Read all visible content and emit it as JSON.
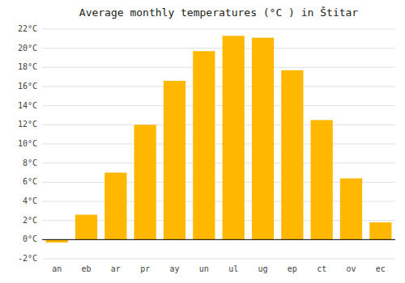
{
  "chart_data": {
    "type": "bar",
    "title": "Average monthly temperatures (°C ) in Štitar",
    "categories": [
      "an",
      "eb",
      "ar",
      "pr",
      "ay",
      "un",
      "ul",
      "ug",
      "ep",
      "ct",
      "ov",
      "ec"
    ],
    "values": [
      -0.3,
      2.6,
      7.0,
      12.0,
      16.6,
      19.7,
      21.3,
      21.1,
      17.7,
      12.5,
      6.4,
      1.8
    ],
    "color": "#FFB700",
    "ylim": [
      -2,
      22
    ],
    "yticks": [
      {
        "value": -2,
        "label": "-2°C"
      },
      {
        "value": 0,
        "label": "0°C"
      },
      {
        "value": 2,
        "label": "2°C"
      },
      {
        "value": 4,
        "label": "4°C"
      },
      {
        "value": 6,
        "label": "6°C"
      },
      {
        "value": 8,
        "label": "8°C"
      },
      {
        "value": 10,
        "label": "10°C"
      },
      {
        "value": 12,
        "label": "12°C"
      },
      {
        "value": 14,
        "label": "14°C"
      },
      {
        "value": 16,
        "label": "16°C"
      },
      {
        "value": 18,
        "label": "18°C"
      },
      {
        "value": 20,
        "label": "20°C"
      },
      {
        "value": 22,
        "label": "22°C"
      }
    ],
    "grid": true
  }
}
